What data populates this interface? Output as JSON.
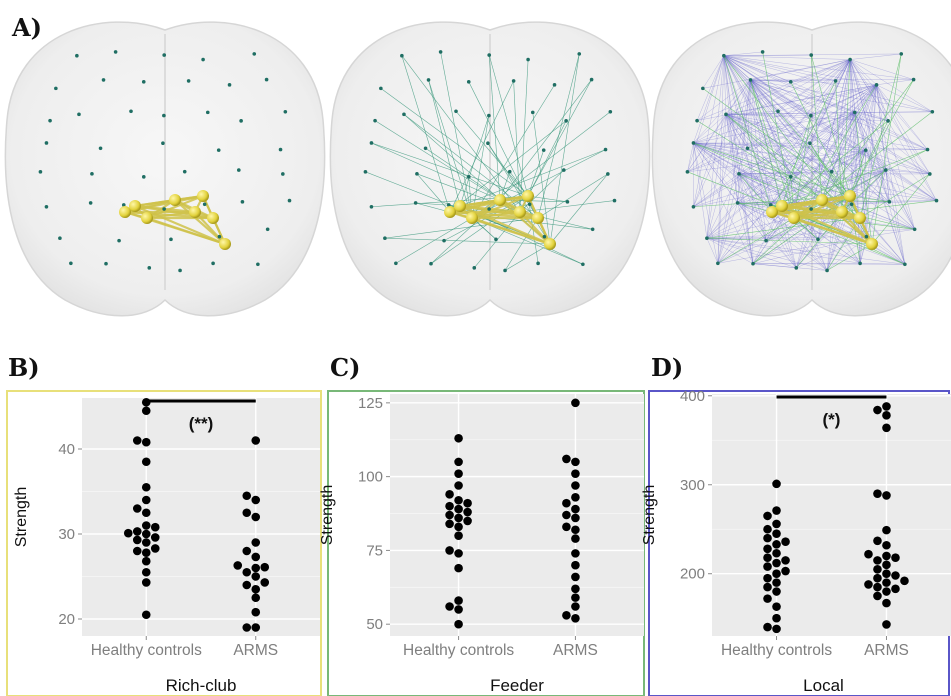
{
  "panel_labels": [
    "A)",
    "B)",
    "C)",
    "D)"
  ],
  "colors": {
    "rich_club": "#e8e07a",
    "feeder": "#3f9a7e",
    "local": "#5a56c8",
    "node": "#1f6e63",
    "hub": "#e2d23c",
    "panel_bg": "#ebebeb",
    "dot": "#000000"
  },
  "chart_data": [
    {
      "type": "scatter",
      "style": "dotplot",
      "panel": "B)",
      "xlabel": "Rich-club",
      "ylabel": "Strength",
      "categories": [
        "Healthy controls",
        "ARMS"
      ],
      "yticks": [
        20,
        30,
        40
      ],
      "ylim": [
        18,
        46
      ],
      "grid": true,
      "significance": "(**)",
      "series": [
        {
          "values": [
            20.5,
            24.3,
            25.5,
            26.8,
            27.8,
            28.0,
            28.3,
            29.0,
            29.3,
            29.6,
            30.0,
            30.1,
            30.3,
            30.8,
            31.0,
            32.5,
            33.0,
            34.0,
            35.5,
            38.5,
            40.8,
            41.0,
            44.5,
            45.5
          ]
        },
        {
          "values": [
            19.0,
            19.0,
            20.8,
            22.5,
            23.5,
            24.0,
            24.3,
            25.0,
            25.5,
            26.0,
            26.1,
            26.3,
            27.3,
            28.0,
            29.0,
            32.0,
            32.5,
            34.0,
            34.5,
            41.0
          ]
        }
      ]
    },
    {
      "type": "scatter",
      "style": "dotplot",
      "panel": "C)",
      "xlabel": "Feeder",
      "ylabel": "Strength",
      "categories": [
        "Healthy controls",
        "ARMS"
      ],
      "yticks": [
        50,
        75,
        100,
        125
      ],
      "ylim": [
        46,
        128
      ],
      "grid": true,
      "series": [
        {
          "values": [
            50,
            55,
            56,
            58,
            69,
            74,
            75,
            80,
            83,
            84,
            85,
            86,
            87,
            88,
            89,
            90,
            91,
            92,
            94,
            97,
            101,
            105,
            113
          ]
        },
        {
          "values": [
            52,
            53,
            56,
            59,
            62,
            66,
            70,
            74,
            79,
            82,
            83,
            86,
            87,
            89,
            91,
            93,
            97,
            101,
            105,
            106,
            125
          ]
        }
      ]
    },
    {
      "type": "scatter",
      "style": "dotplot",
      "panel": "D)",
      "xlabel": "Local",
      "ylabel": "Strength",
      "categories": [
        "Healthy controls",
        "ARMS"
      ],
      "yticks": [
        200,
        300,
        400
      ],
      "ylim": [
        130,
        402
      ],
      "grid": true,
      "significance": "(*)",
      "series": [
        {
          "values": [
            138,
            140,
            150,
            163,
            172,
            180,
            185,
            190,
            195,
            200,
            203,
            208,
            212,
            215,
            218,
            223,
            228,
            233,
            236,
            240,
            245,
            250,
            256,
            265,
            271,
            301
          ]
        },
        {
          "values": [
            143,
            167,
            175,
            180,
            183,
            185,
            188,
            190,
            192,
            195,
            198,
            200,
            205,
            210,
            215,
            218,
            220,
            222,
            232,
            237,
            249,
            288,
            290,
            364,
            378,
            384,
            388
          ]
        }
      ]
    }
  ]
}
